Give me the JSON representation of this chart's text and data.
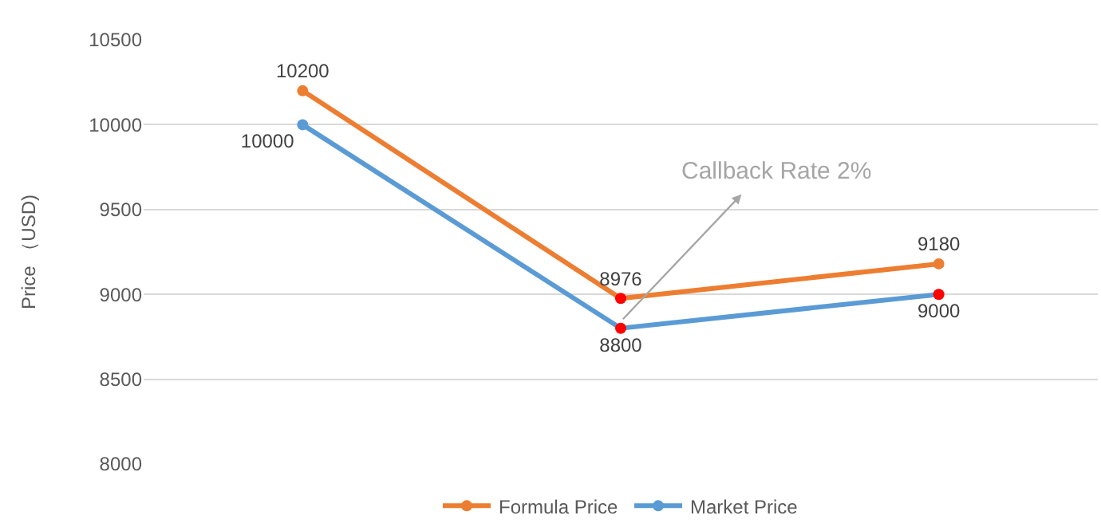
{
  "chart_data": {
    "type": "line",
    "ylabel": "Price （USD)",
    "categories": [
      null,
      null,
      null
    ],
    "series": [
      {
        "name": "Formula Price",
        "color": "#ed7d31",
        "colors": [
          "#ed7d31",
          "#ff0000",
          "#ed7d31"
        ],
        "values": [
          10200,
          8976,
          9180
        ]
      },
      {
        "name": "Market Price",
        "color": "#5b9bd5",
        "colors": [
          "#5b9bd5",
          "#ff0000",
          "#ff0000"
        ],
        "values": [
          10000,
          8800,
          9000
        ]
      }
    ],
    "ylim": [
      8000,
      10500
    ],
    "yticks": [
      8000,
      8500,
      9000,
      9500,
      10000,
      10500
    ],
    "grid": "y",
    "legend": "bottom",
    "marker": "circle",
    "line_style": "solid",
    "data_labels": true,
    "annotations": [
      "Callback Rate 2%"
    ]
  }
}
